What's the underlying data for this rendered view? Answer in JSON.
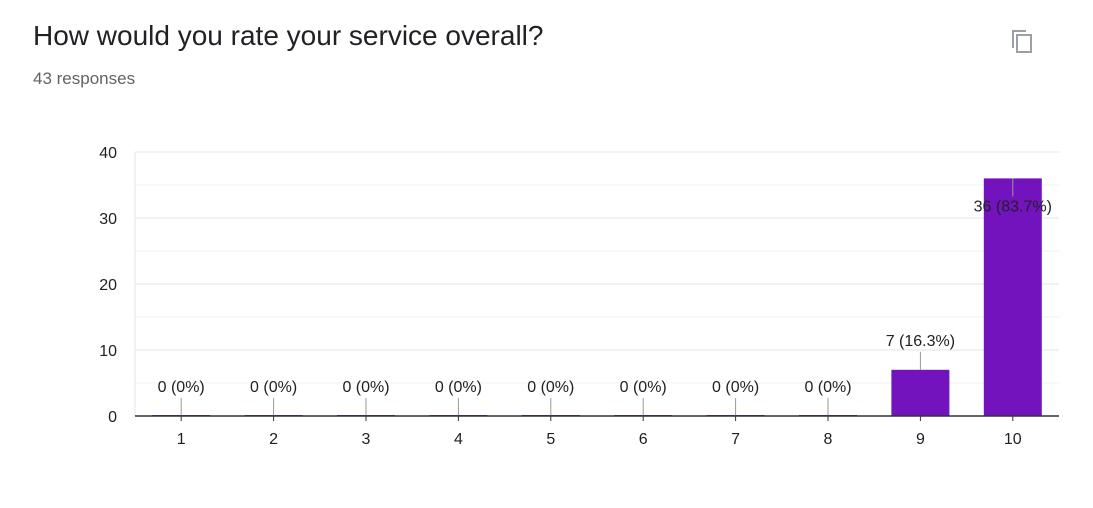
{
  "header": {
    "title": "How would you rate your service overall?",
    "responses": "43 responses"
  },
  "icons": {
    "copy": "copy-icon"
  },
  "colors": {
    "bar": "#7213BE",
    "grid": "#E6E6E6",
    "axis": "#333333",
    "text": "#202124",
    "muted": "#5F6368"
  },
  "chart_data": {
    "type": "bar",
    "categories": [
      "1",
      "2",
      "3",
      "4",
      "5",
      "6",
      "7",
      "8",
      "9",
      "10"
    ],
    "values": [
      0,
      0,
      0,
      0,
      0,
      0,
      0,
      0,
      7,
      36
    ],
    "data_labels": [
      "0 (0%)",
      "0 (0%)",
      "0 (0%)",
      "0 (0%)",
      "0 (0%)",
      "0 (0%)",
      "0 (0%)",
      "0 (0%)",
      "7 (16.3%)",
      "36 (83.7%)"
    ],
    "yticks": [
      0,
      10,
      20,
      30,
      40
    ],
    "ylim": [
      0,
      40
    ],
    "title": "",
    "xlabel": "",
    "ylabel": "",
    "grid": true,
    "legend": "none"
  }
}
